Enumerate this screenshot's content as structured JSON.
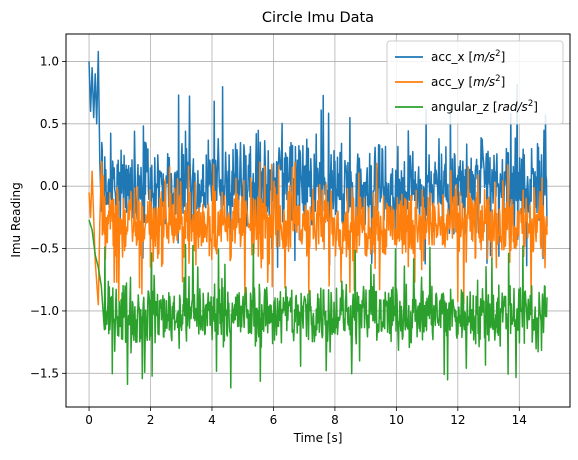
{
  "chart_data": {
    "type": "line",
    "title": "Circle Imu Data",
    "xlabel": "Time [s]",
    "ylabel": "Imu Reading",
    "xlim": [
      -0.75,
      15.65
    ],
    "ylim": [
      -1.77,
      1.22
    ],
    "x_ticks": [
      0,
      2,
      4,
      6,
      8,
      10,
      12,
      14
    ],
    "y_ticks": [
      -1.5,
      -1.0,
      -0.5,
      0.0,
      0.5,
      1.0
    ],
    "x_tick_labels": [
      "0",
      "2",
      "4",
      "6",
      "8",
      "10",
      "12",
      "14"
    ],
    "y_tick_labels": [
      "−1.5",
      "−1.0",
      "−0.5",
      "0.0",
      "0.5",
      "1.0"
    ],
    "grid": true,
    "legend_position": "top-right",
    "x_range": [
      0,
      14.9
    ],
    "series": [
      {
        "name": "acc_x",
        "unit": "m/s",
        "unit_exp": "2",
        "color": "#1f77b4",
        "initial_transient": {
          "x": [
            0.0,
            0.05,
            0.1,
            0.15,
            0.2,
            0.25,
            0.3,
            0.35,
            0.4
          ],
          "y": [
            1.0,
            0.6,
            0.95,
            0.55,
            0.9,
            0.5,
            1.08,
            0.2,
            -0.2
          ]
        },
        "steady_mean": -0.05,
        "band": [
          -0.55,
          0.55
        ],
        "observed_max": 1.08,
        "observed_min": -0.65
      },
      {
        "name": "acc_y",
        "unit": "m/s",
        "unit_exp": "2",
        "color": "#ff7f0e",
        "initial_transient": {
          "x": [
            0.0,
            0.05,
            0.1,
            0.2,
            0.3,
            0.35,
            0.4
          ],
          "y": [
            -0.05,
            -0.25,
            0.12,
            -0.6,
            -0.95,
            -0.3,
            0.15
          ]
        },
        "steady_mean": -0.32,
        "band": [
          -0.75,
          0.15
        ],
        "observed_max": 0.25,
        "observed_min": -0.95
      },
      {
        "name": "angular_z",
        "unit": "rad/s",
        "unit_exp": "2",
        "color": "#2ca02c",
        "initial_transient": {
          "x": [
            0.0,
            0.1,
            0.2,
            0.3,
            0.4,
            0.5
          ],
          "y": [
            -0.27,
            -0.35,
            -0.55,
            -0.65,
            -0.8,
            -1.15
          ]
        },
        "steady_mean": -1.0,
        "band": [
          -1.4,
          -0.65
        ],
        "observed_max": -0.27,
        "observed_min": -1.62
      }
    ]
  }
}
